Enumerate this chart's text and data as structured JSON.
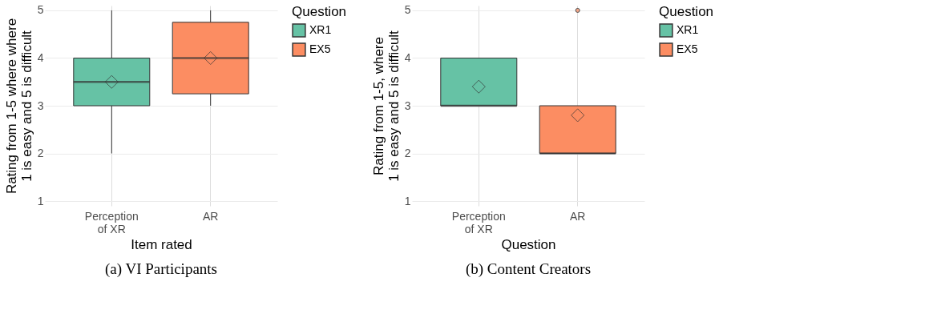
{
  "chart_data": [
    {
      "type": "box",
      "title": "(a) VI Participants",
      "xlabel": "Item rated",
      "ylabel": "Rating from 1-5 where where\n1 is easy and 5 is difficult",
      "legend_title": "Question",
      "legend": "right",
      "grid": true,
      "categories": [
        "Perception\nof XR",
        "AR"
      ],
      "ylim": [
        0.9,
        5.1
      ],
      "yticks": [
        1,
        2,
        3,
        4,
        5
      ],
      "series": [
        {
          "name": "XR1",
          "color": "#66c2a5",
          "boxes": [
            {
              "low": 2,
              "q1": 3,
              "median": 3.5,
              "q3": 4,
              "high": 5,
              "mean": 3.5
            },
            null
          ]
        },
        {
          "name": "EX5",
          "color": "#fc8d62",
          "boxes": [
            null,
            {
              "low": 3,
              "q1": 3.25,
              "median": 4,
              "q3": 4.75,
              "high": 5,
              "mean": 4
            }
          ]
        }
      ]
    },
    {
      "type": "box",
      "title": "(b) Content Creators",
      "xlabel": "Question",
      "ylabel": "Rating from 1-5, where\n1 is easy and 5 is difficult",
      "legend_title": "Question",
      "legend": "right",
      "grid": true,
      "categories": [
        "Perception\nof XR",
        "AR"
      ],
      "ylim": [
        0.9,
        5.1
      ],
      "yticks": [
        1,
        2,
        3,
        4,
        5
      ],
      "series": [
        {
          "name": "XR1",
          "color": "#66c2a5",
          "boxes": [
            {
              "low": 3,
              "q1": 3,
              "median": 3,
              "q3": 4,
              "high": 4,
              "mean": 3.4
            },
            null
          ]
        },
        {
          "name": "EX5",
          "color": "#fc8d62",
          "boxes": [
            null,
            {
              "low": 2,
              "q1": 2,
              "median": 2,
              "q3": 3,
              "high": 3,
              "mean": 2.8,
              "outliers": [
                5
              ]
            }
          ]
        }
      ]
    }
  ]
}
